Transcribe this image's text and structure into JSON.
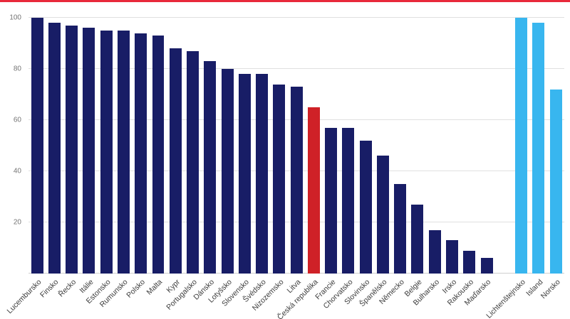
{
  "page": {
    "accent_line_color": "#e8293a",
    "background": "#ffffff"
  },
  "chart_data": {
    "type": "bar",
    "title": "",
    "xlabel": "",
    "ylabel": "",
    "ylim": [
      0,
      100
    ],
    "y_ticks": [
      20,
      40,
      60,
      80,
      100
    ],
    "grid": true,
    "legend": "none",
    "categories": [
      "Lucembursko",
      "Finsko",
      "Řecko",
      "Itálie",
      "Estonsko",
      "Rumunsko",
      "Polsko",
      "Malta",
      "Kypr",
      "Portugalsko",
      "Dánsko",
      "Lotyšsko",
      "Slovensko",
      "Švédsko",
      "Nizozemsko",
      "Litva",
      "Česká republika",
      "Francie",
      "Chorvatsko",
      "Slovinsko",
      "Španělsko",
      "Německo",
      "Belgie",
      "Bulharsko",
      "Irsko",
      "Rakousko",
      "Maďarsko",
      "Lichtenštejnsko",
      "Island",
      "Norsko"
    ],
    "values": [
      100,
      98,
      97,
      96,
      95,
      95,
      94,
      93,
      88,
      87,
      83,
      80,
      78,
      78,
      74,
      73,
      65,
      57,
      57,
      52,
      46,
      35,
      27,
      17,
      13,
      9,
      6,
      100,
      98,
      72
    ],
    "bar_colors": [
      "#181d66",
      "#181d66",
      "#181d66",
      "#181d66",
      "#181d66",
      "#181d66",
      "#181d66",
      "#181d66",
      "#181d66",
      "#181d66",
      "#181d66",
      "#181d66",
      "#181d66",
      "#181d66",
      "#181d66",
      "#181d66",
      "#cf2127",
      "#181d66",
      "#181d66",
      "#181d66",
      "#181d66",
      "#181d66",
      "#181d66",
      "#181d66",
      "#181d66",
      "#181d66",
      "#181d66",
      "#38b6ef",
      "#38b6ef",
      "#38b6ef"
    ],
    "highlight_index": 16,
    "gap_after_index": 26,
    "colors": {
      "eu_member": "#181d66",
      "czech_highlight": "#cf2127",
      "efta": "#38b6ef",
      "gridline": "#e0e0e0",
      "axis_text": "#757575",
      "label_text": "#3d3d3d"
    }
  }
}
